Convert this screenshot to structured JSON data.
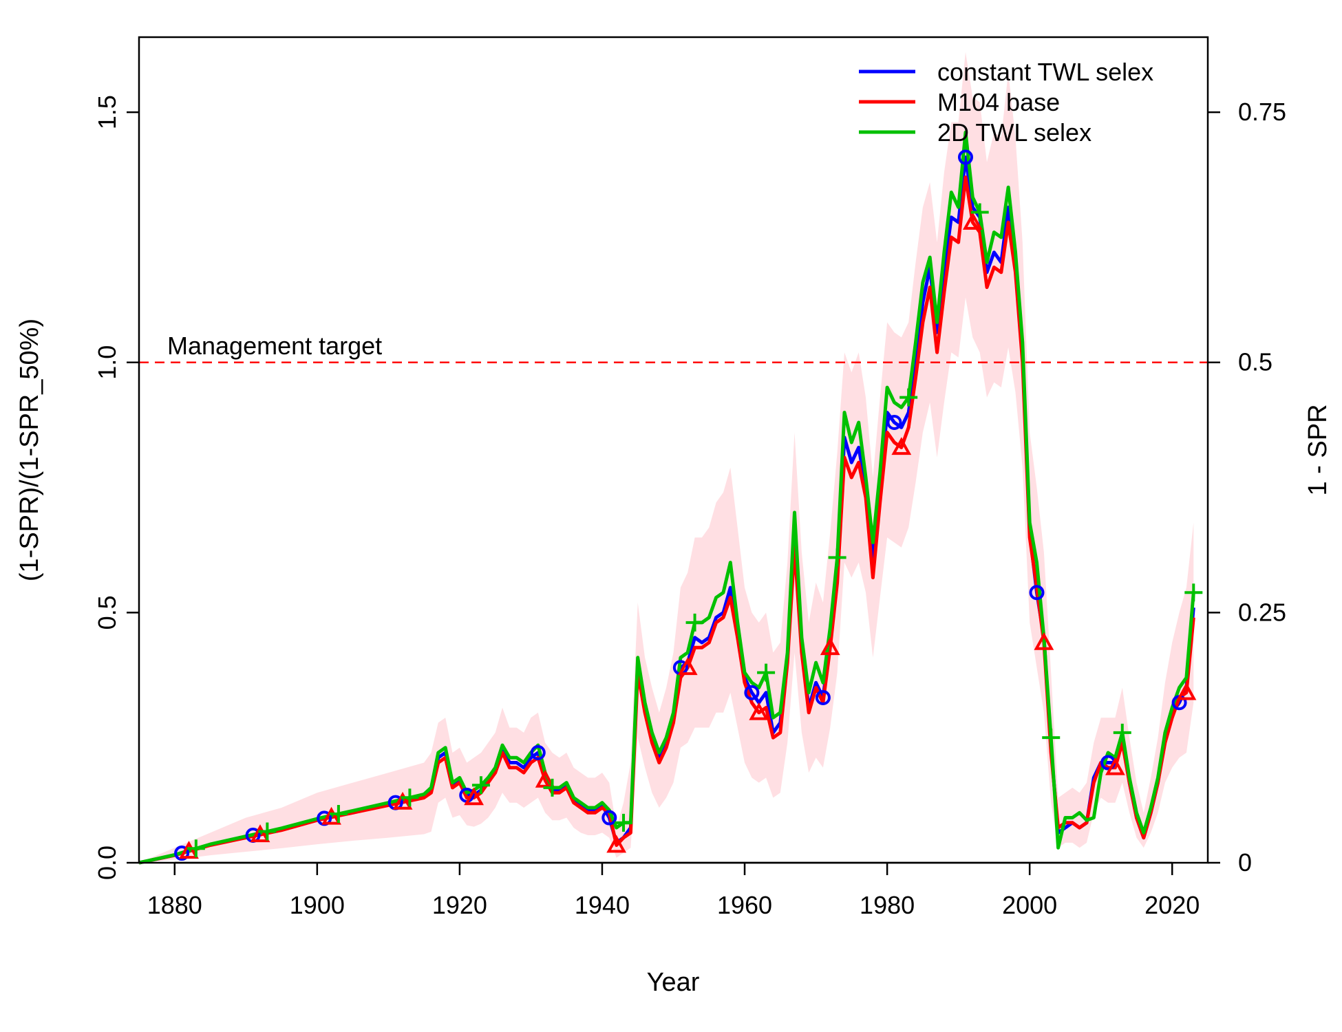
{
  "chart_data": {
    "type": "line",
    "xlabel": "Year",
    "ylabel": "(1-SPR)/(1-SPR_50%)",
    "ylabel_right": "1 - SPR",
    "xlim": [
      1875,
      2025
    ],
    "ylim": [
      0,
      1.65
    ],
    "x_ticks": [
      1880,
      1900,
      1920,
      1940,
      1960,
      1980,
      2000,
      2020
    ],
    "y_ticks": [
      "0.0",
      "0.5",
      "1.0",
      "1.5"
    ],
    "y_tick_values": [
      0,
      0.5,
      1.0,
      1.5
    ],
    "y_right_ticks": [
      "0",
      "0.25",
      "0.5",
      "0.75"
    ],
    "y_right_tick_values": [
      0,
      0.5,
      1.0,
      1.5
    ],
    "grid": false,
    "legend_position": "top-right",
    "reference_line": {
      "value": 1.0,
      "label": "Management target",
      "color": "#ff0000"
    },
    "uncertainty_band": {
      "series": "M104 base",
      "color": "#ffdfe3"
    },
    "series": [
      {
        "name": "constant TWL selex",
        "color": "#0000ff",
        "marker": "circle",
        "marker_years": [
          1881,
          1891,
          1901,
          1911,
          1921,
          1931,
          1941,
          1951,
          1961,
          1971,
          1981,
          1991,
          2001,
          2011,
          2021
        ]
      },
      {
        "name": "M104 base",
        "color": "#ff0000",
        "marker": "triangle",
        "marker_years": [
          1882,
          1892,
          1902,
          1912,
          1922,
          1932,
          1942,
          1952,
          1962,
          1972,
          1982,
          1992,
          2002,
          2012,
          2022
        ]
      },
      {
        "name": "2D TWL selex",
        "color": "#00c000",
        "marker": "plus",
        "marker_years": [
          1883,
          1893,
          1903,
          1913,
          1923,
          1933,
          1943,
          1953,
          1963,
          1973,
          1983,
          1993,
          2003,
          2013,
          2023
        ]
      }
    ],
    "base_x": [
      1875,
      1880,
      1885,
      1890,
      1895,
      1900,
      1905,
      1910,
      1915,
      1916,
      1917,
      1918,
      1919,
      1920,
      1921,
      1922,
      1923,
      1924,
      1925,
      1926,
      1927,
      1928,
      1929,
      1930,
      1931,
      1932,
      1933,
      1934,
      1935,
      1936,
      1937,
      1938,
      1939,
      1940,
      1941,
      1942,
      1943,
      1944,
      1945,
      1946,
      1947,
      1948,
      1949,
      1950,
      1951,
      1952,
      1953,
      1954,
      1955,
      1956,
      1957,
      1958,
      1959,
      1960,
      1961,
      1962,
      1963,
      1964,
      1965,
      1966,
      1967,
      1968,
      1969,
      1970,
      1971,
      1972,
      1973,
      1974,
      1975,
      1976,
      1977,
      1978,
      1979,
      1980,
      1981,
      1982,
      1983,
      1984,
      1985,
      1986,
      1987,
      1988,
      1989,
      1990,
      1991,
      1992,
      1993,
      1994,
      1995,
      1996,
      1997,
      1998,
      1999,
      2000,
      2001,
      2002,
      2003,
      2004,
      2005,
      2006,
      2007,
      2008,
      2009,
      2010,
      2011,
      2012,
      2013,
      2014,
      2015,
      2016,
      2017,
      2018,
      2019,
      2020,
      2021,
      2022,
      2023
    ],
    "base_y": [
      0.0,
      0.015,
      0.035,
      0.05,
      0.065,
      0.085,
      0.1,
      0.115,
      0.13,
      0.14,
      0.2,
      0.21,
      0.15,
      0.16,
      0.13,
      0.13,
      0.14,
      0.16,
      0.18,
      0.22,
      0.19,
      0.19,
      0.18,
      0.2,
      0.21,
      0.165,
      0.14,
      0.14,
      0.15,
      0.12,
      0.11,
      0.1,
      0.1,
      0.11,
      0.1,
      0.035,
      0.05,
      0.06,
      0.38,
      0.3,
      0.24,
      0.2,
      0.23,
      0.28,
      0.37,
      0.39,
      0.43,
      0.43,
      0.44,
      0.48,
      0.49,
      0.53,
      0.45,
      0.36,
      0.32,
      0.3,
      0.31,
      0.25,
      0.26,
      0.4,
      0.63,
      0.42,
      0.3,
      0.35,
      0.32,
      0.43,
      0.56,
      0.81,
      0.77,
      0.8,
      0.73,
      0.57,
      0.72,
      0.86,
      0.84,
      0.83,
      0.87,
      0.97,
      1.08,
      1.15,
      1.02,
      1.14,
      1.25,
      1.24,
      1.37,
      1.28,
      1.26,
      1.15,
      1.19,
      1.18,
      1.28,
      1.18,
      1.0,
      0.65,
      0.55,
      0.44,
      0.22,
      0.07,
      0.08,
      0.08,
      0.07,
      0.08,
      0.16,
      0.2,
      0.19,
      0.19,
      0.24,
      0.16,
      0.09,
      0.05,
      0.1,
      0.16,
      0.24,
      0.29,
      0.33,
      0.34,
      0.49,
      0.5
    ],
    "blue_y": [
      0.0,
      0.015,
      0.036,
      0.052,
      0.067,
      0.086,
      0.1,
      0.117,
      0.133,
      0.145,
      0.21,
      0.22,
      0.155,
      0.165,
      0.135,
      0.135,
      0.145,
      0.165,
      0.185,
      0.23,
      0.2,
      0.2,
      0.19,
      0.21,
      0.22,
      0.17,
      0.145,
      0.145,
      0.155,
      0.125,
      0.115,
      0.105,
      0.105,
      0.115,
      0.09,
      0.04,
      0.05,
      0.07,
      0.4,
      0.31,
      0.25,
      0.21,
      0.24,
      0.29,
      0.39,
      0.4,
      0.45,
      0.44,
      0.45,
      0.49,
      0.5,
      0.55,
      0.46,
      0.37,
      0.34,
      0.32,
      0.34,
      0.26,
      0.28,
      0.41,
      0.67,
      0.43,
      0.31,
      0.36,
      0.33,
      0.44,
      0.58,
      0.85,
      0.8,
      0.83,
      0.75,
      0.6,
      0.75,
      0.9,
      0.88,
      0.87,
      0.9,
      1.0,
      1.12,
      1.19,
      1.06,
      1.18,
      1.29,
      1.28,
      1.41,
      1.31,
      1.29,
      1.18,
      1.22,
      1.2,
      1.31,
      1.2,
      1.02,
      0.66,
      0.54,
      0.45,
      0.23,
      0.06,
      0.07,
      0.08,
      0.07,
      0.08,
      0.17,
      0.2,
      0.2,
      0.2,
      0.25,
      0.16,
      0.09,
      0.05,
      0.1,
      0.16,
      0.25,
      0.3,
      0.32,
      0.35,
      0.51,
      0.52
    ],
    "green_y": [
      0.0,
      0.016,
      0.037,
      0.053,
      0.069,
      0.088,
      0.104,
      0.12,
      0.137,
      0.15,
      0.22,
      0.23,
      0.16,
      0.17,
      0.14,
      0.145,
      0.155,
      0.17,
      0.19,
      0.235,
      0.21,
      0.21,
      0.2,
      0.22,
      0.235,
      0.18,
      0.15,
      0.15,
      0.16,
      0.13,
      0.12,
      0.11,
      0.11,
      0.12,
      0.105,
      0.07,
      0.08,
      0.08,
      0.41,
      0.32,
      0.26,
      0.22,
      0.25,
      0.3,
      0.41,
      0.42,
      0.48,
      0.48,
      0.49,
      0.53,
      0.54,
      0.6,
      0.48,
      0.38,
      0.36,
      0.35,
      0.38,
      0.29,
      0.3,
      0.42,
      0.7,
      0.45,
      0.34,
      0.4,
      0.36,
      0.47,
      0.61,
      0.9,
      0.84,
      0.88,
      0.77,
      0.64,
      0.78,
      0.95,
      0.92,
      0.91,
      0.93,
      1.04,
      1.16,
      1.21,
      1.08,
      1.22,
      1.34,
      1.31,
      1.46,
      1.33,
      1.3,
      1.2,
      1.26,
      1.25,
      1.35,
      1.22,
      1.04,
      0.68,
      0.6,
      0.45,
      0.25,
      0.03,
      0.09,
      0.09,
      0.1,
      0.085,
      0.09,
      0.18,
      0.22,
      0.21,
      0.26,
      0.17,
      0.1,
      0.06,
      0.11,
      0.17,
      0.26,
      0.31,
      0.35,
      0.37,
      0.54,
      0.55
    ],
    "band_upper": [
      0.0,
      0.03,
      0.06,
      0.09,
      0.11,
      0.14,
      0.16,
      0.18,
      0.2,
      0.22,
      0.28,
      0.29,
      0.22,
      0.23,
      0.2,
      0.21,
      0.22,
      0.24,
      0.26,
      0.31,
      0.27,
      0.27,
      0.26,
      0.29,
      0.3,
      0.24,
      0.22,
      0.21,
      0.22,
      0.19,
      0.18,
      0.17,
      0.17,
      0.18,
      0.16,
      0.07,
      0.12,
      0.2,
      0.52,
      0.41,
      0.35,
      0.3,
      0.35,
      0.42,
      0.55,
      0.58,
      0.65,
      0.65,
      0.67,
      0.72,
      0.74,
      0.79,
      0.67,
      0.55,
      0.5,
      0.48,
      0.5,
      0.42,
      0.44,
      0.6,
      0.86,
      0.62,
      0.48,
      0.56,
      0.52,
      0.66,
      0.82,
      1.02,
      0.98,
      1.02,
      0.93,
      0.77,
      0.93,
      1.08,
      1.06,
      1.05,
      1.08,
      1.2,
      1.31,
      1.36,
      1.24,
      1.38,
      1.48,
      1.48,
      1.62,
      1.53,
      1.52,
      1.4,
      1.46,
      1.45,
      1.58,
      1.45,
      1.24,
      0.86,
      0.75,
      0.62,
      0.38,
      0.13,
      0.14,
      0.15,
      0.14,
      0.16,
      0.24,
      0.29,
      0.29,
      0.29,
      0.35,
      0.25,
      0.16,
      0.1,
      0.17,
      0.25,
      0.36,
      0.44,
      0.5,
      0.55,
      0.68,
      0.7
    ],
    "band_lower": [
      0.0,
      0.006,
      0.015,
      0.022,
      0.029,
      0.037,
      0.044,
      0.05,
      0.057,
      0.062,
      0.12,
      0.13,
      0.09,
      0.095,
      0.075,
      0.072,
      0.078,
      0.09,
      0.11,
      0.14,
      0.12,
      0.12,
      0.11,
      0.12,
      0.13,
      0.1,
      0.085,
      0.085,
      0.09,
      0.07,
      0.06,
      0.055,
      0.055,
      0.06,
      0.05,
      0.01,
      0.02,
      0.03,
      0.25,
      0.19,
      0.14,
      0.11,
      0.13,
      0.16,
      0.23,
      0.24,
      0.27,
      0.27,
      0.27,
      0.3,
      0.3,
      0.34,
      0.27,
      0.2,
      0.17,
      0.16,
      0.17,
      0.13,
      0.14,
      0.24,
      0.42,
      0.26,
      0.18,
      0.21,
      0.19,
      0.27,
      0.38,
      0.6,
      0.57,
      0.6,
      0.54,
      0.41,
      0.53,
      0.65,
      0.64,
      0.63,
      0.67,
      0.76,
      0.86,
      0.92,
      0.81,
      0.92,
      1.02,
      1.01,
      1.13,
      1.05,
      1.02,
      0.93,
      0.96,
      0.95,
      1.03,
      0.94,
      0.79,
      0.48,
      0.39,
      0.3,
      0.12,
      0.03,
      0.04,
      0.04,
      0.03,
      0.04,
      0.1,
      0.13,
      0.12,
      0.12,
      0.16,
      0.1,
      0.05,
      0.03,
      0.06,
      0.1,
      0.16,
      0.19,
      0.21,
      0.22,
      0.32,
      0.33
    ]
  }
}
